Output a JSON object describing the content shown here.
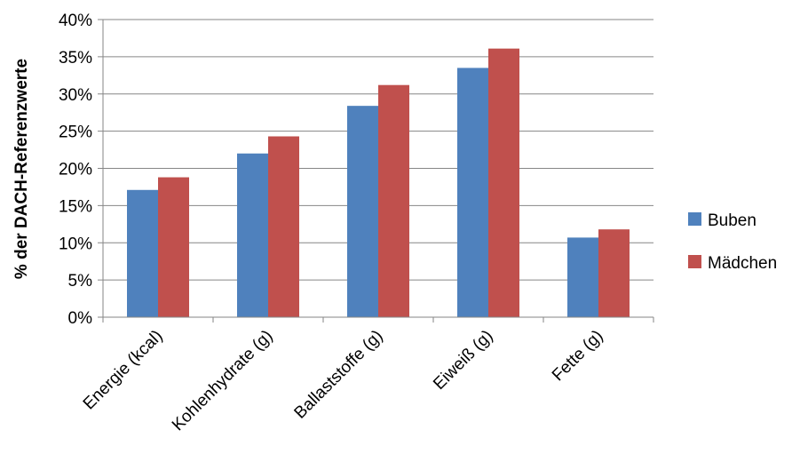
{
  "chart_data": {
    "type": "bar",
    "title": "",
    "xlabel": "",
    "ylabel": "% der DACH-Referenzwerte",
    "categories": [
      "Energie (kcal)",
      "Kohlenhydrate (g)",
      "Ballaststoffe (g)",
      "Eiweiß (g)",
      "Fette (g)"
    ],
    "series": [
      {
        "name": "Buben",
        "values": [
          17.1,
          22.0,
          28.4,
          33.5,
          10.7
        ],
        "color": "#4F81BD"
      },
      {
        "name": "Mädchen",
        "values": [
          18.8,
          24.3,
          31.2,
          36.1,
          11.8
        ],
        "color": "#C0504D"
      }
    ],
    "ylim": [
      0,
      40
    ],
    "y_ticks": [
      0,
      5,
      10,
      15,
      20,
      25,
      30,
      35,
      40
    ],
    "y_tick_format": "percent",
    "grid": true,
    "legend_position": "right"
  }
}
